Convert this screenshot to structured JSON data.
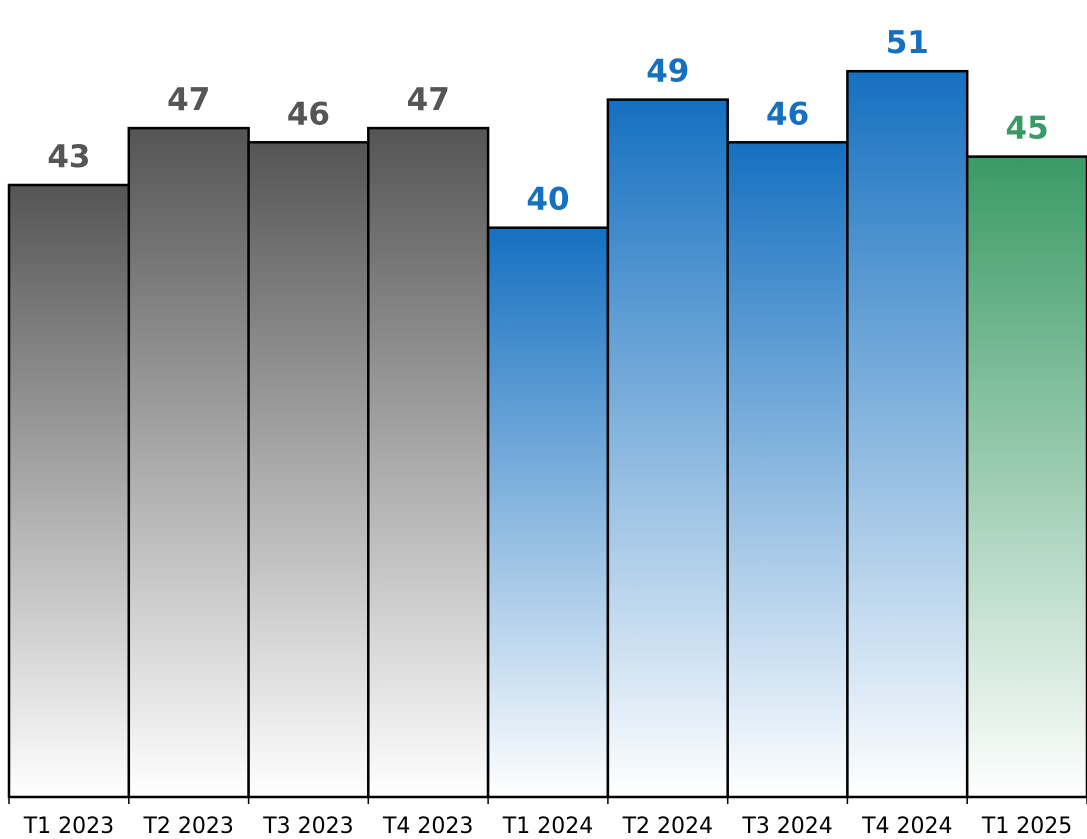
{
  "chart_data": {
    "type": "bar",
    "title": "",
    "xlabel": "",
    "ylabel": "",
    "categories": [
      "T1 2023",
      "T2 2023",
      "T3 2023",
      "T4 2023",
      "T1 2024",
      "T2 2024",
      "T3 2024",
      "T4 2024",
      "T1 2025"
    ],
    "values": [
      43,
      47,
      46,
      47,
      40,
      49,
      46,
      51,
      45
    ],
    "groups": [
      "2023",
      "2023",
      "2023",
      "2023",
      "2024",
      "2024",
      "2024",
      "2024",
      "2025"
    ],
    "ylim": [
      0,
      56
    ],
    "grid": false,
    "legend": "none",
    "colors": {
      "2023": {
        "top": "#555555",
        "bottom": "#ffffff",
        "label": "#555555"
      },
      "2024": {
        "top": "#1570c0",
        "bottom": "#ffffff",
        "label": "#1570c0"
      },
      "2025": {
        "top": "#3a9a65",
        "bottom": "#ffffff",
        "label": "#3a9a65"
      }
    }
  }
}
